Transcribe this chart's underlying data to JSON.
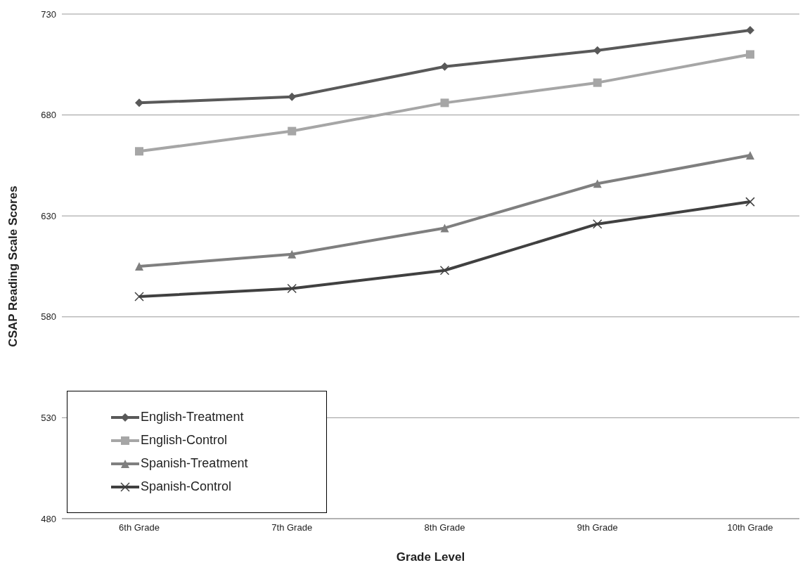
{
  "chart_data": {
    "type": "line",
    "xlabel": "Grade Level",
    "ylabel": "CSAP Reading Scale Scores",
    "categories": [
      "6th Grade",
      "7th Grade",
      "8th Grade",
      "9th Grade",
      "10th Grade"
    ],
    "series": [
      {
        "name": "English-Treatment",
        "color": "#595959",
        "marker": "diamond",
        "values": [
          686,
          689,
          704,
          712,
          722
        ]
      },
      {
        "name": "English-Control",
        "color": "#a6a6a6",
        "marker": "square",
        "values": [
          662,
          672,
          686,
          696,
          710
        ]
      },
      {
        "name": "Spanish-Treatment",
        "color": "#7f7f7f",
        "marker": "triangle",
        "values": [
          605,
          611,
          624,
          646,
          660
        ]
      },
      {
        "name": "Spanish-Control",
        "color": "#404040",
        "marker": "cross",
        "values": [
          590,
          594,
          603,
          626,
          637
        ]
      }
    ],
    "ylim": [
      480,
      730
    ],
    "yticks": [
      480,
      530,
      580,
      630,
      680,
      730
    ],
    "grid": "y",
    "legend": "bottom left",
    "line_style": "solid"
  }
}
